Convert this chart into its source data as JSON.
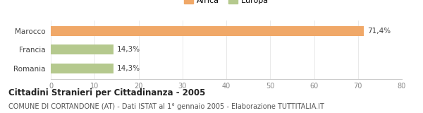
{
  "categories": [
    "Marocco",
    "Francia",
    "Romania"
  ],
  "values": [
    71.4,
    14.3,
    14.3
  ],
  "colors": [
    "#f0a868",
    "#b5c98e",
    "#b5c98e"
  ],
  "legend": [
    {
      "label": "Africa",
      "color": "#f0a868"
    },
    {
      "label": "Europa",
      "color": "#b5c98e"
    }
  ],
  "xlim": [
    0,
    80
  ],
  "xticks": [
    0,
    10,
    20,
    30,
    40,
    50,
    60,
    70,
    80
  ],
  "value_labels": [
    "71,4%",
    "14,3%",
    "14,3%"
  ],
  "title": "Cittadini Stranieri per Cittadinanza - 2005",
  "subtitle": "COMUNE DI CORTANDONE (AT) - Dati ISTAT al 1° gennaio 2005 - Elaborazione TUTTITALIA.IT",
  "title_fontsize": 8.5,
  "subtitle_fontsize": 7.0,
  "bar_height": 0.52,
  "background_color": "#ffffff",
  "axes_color": "#cccccc",
  "label_fontsize": 7.5,
  "tick_fontsize": 7.0,
  "legend_fontsize": 8.0
}
